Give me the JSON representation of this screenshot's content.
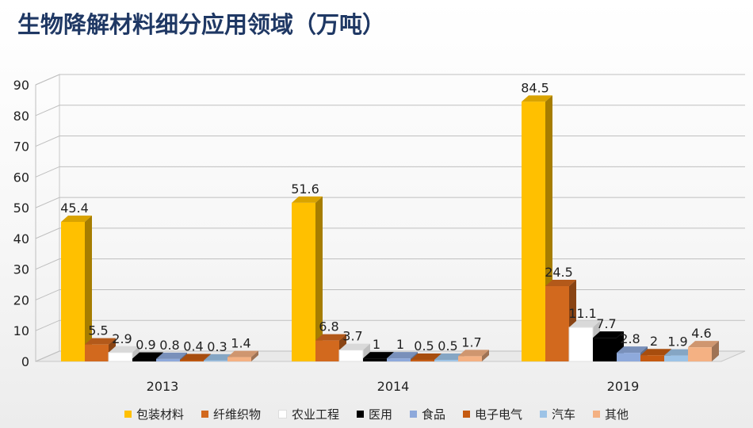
{
  "chart_data": {
    "type": "bar",
    "title": "生物降解材料细分应用领域（万吨）",
    "categories": [
      "2013",
      "2014",
      "2019"
    ],
    "ylim": [
      0,
      90
    ],
    "yticks": [
      0,
      10,
      20,
      30,
      40,
      50,
      60,
      70,
      80,
      90
    ],
    "grid": true,
    "legend_position": "bottom",
    "series": [
      {
        "name": "包装材料",
        "color": "#FFC000",
        "values": [
          45.4,
          51.6,
          84.5
        ]
      },
      {
        "name": "纤维织物",
        "color": "#D2691E",
        "values": [
          5.5,
          6.8,
          24.5
        ]
      },
      {
        "name": "农业工程",
        "color": "#FFFFFF",
        "values": [
          2.9,
          3.7,
          11.1
        ]
      },
      {
        "name": "医用",
        "color": "#000000",
        "values": [
          0.9,
          1,
          7.7
        ]
      },
      {
        "name": "食品",
        "color": "#8EA9DB",
        "values": [
          0.8,
          1,
          2.8
        ]
      },
      {
        "name": "电子电气",
        "color": "#C55A11",
        "values": [
          0.4,
          0.5,
          2
        ]
      },
      {
        "name": "汽车",
        "color": "#9DC3E6",
        "values": [
          0.3,
          0.5,
          1.9
        ]
      },
      {
        "name": "其他",
        "color": "#F4B183",
        "values": [
          1.4,
          1.7,
          4.6
        ]
      }
    ]
  }
}
